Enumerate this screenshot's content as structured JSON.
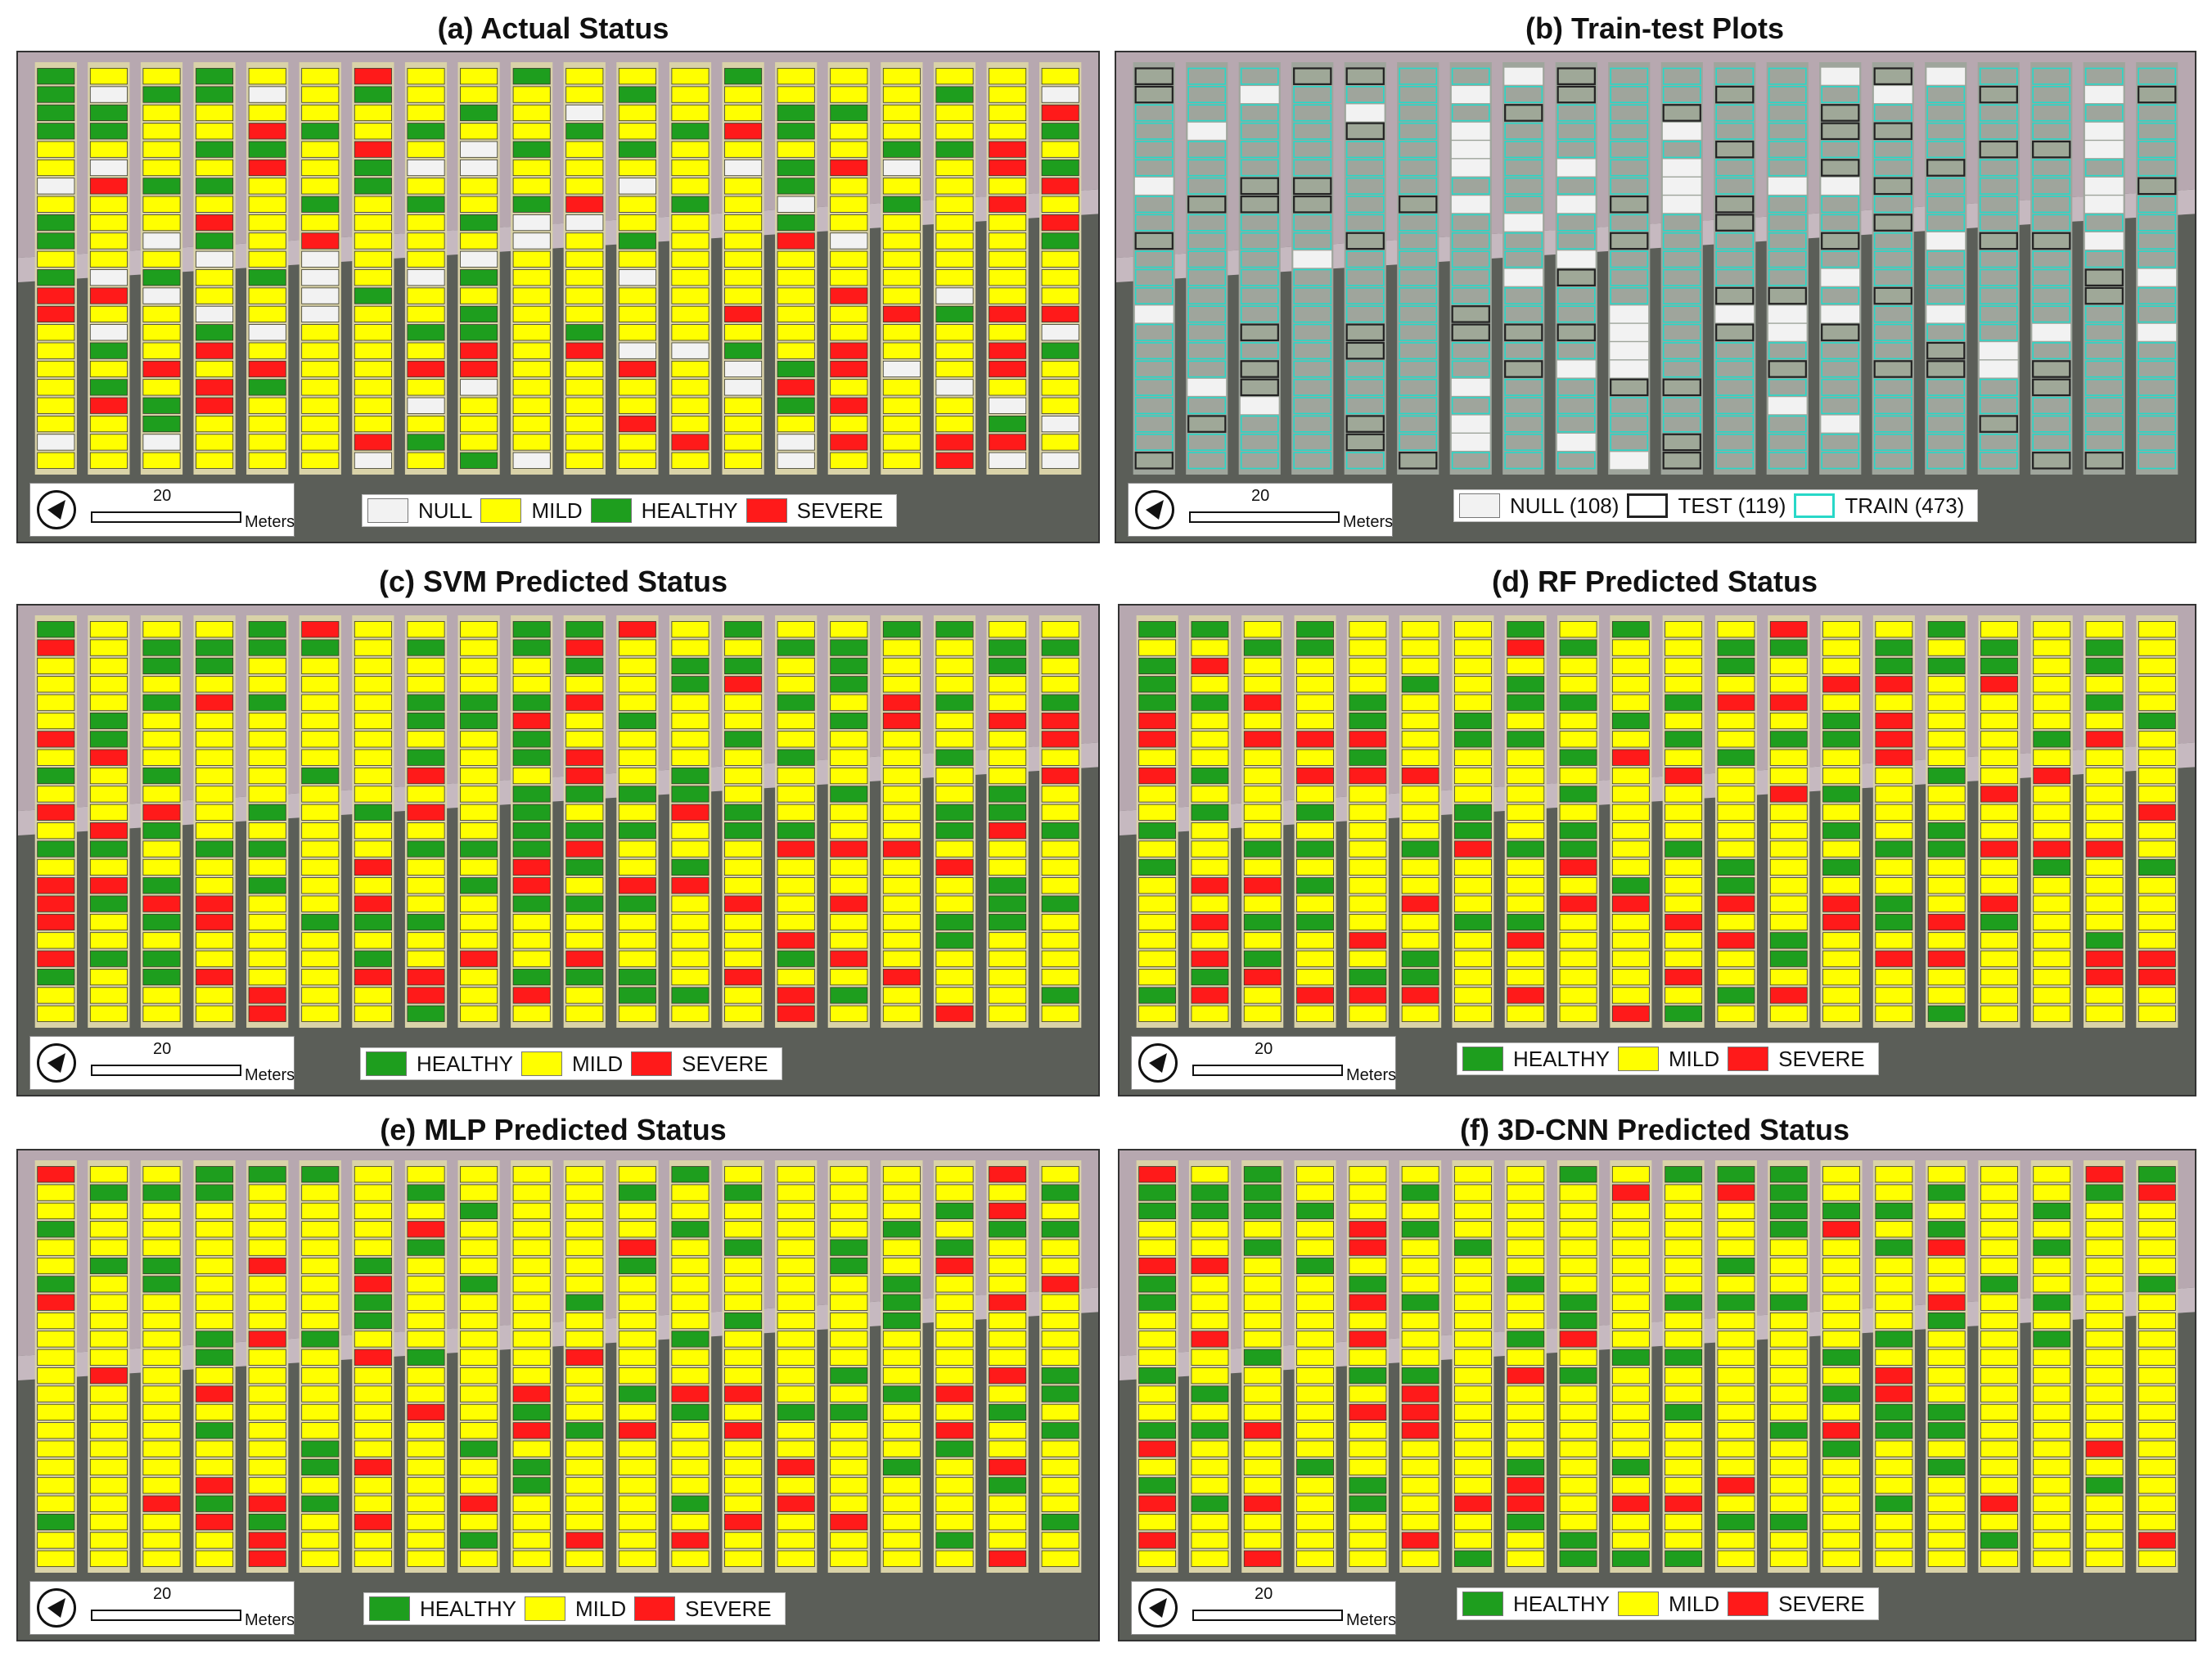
{
  "colors": {
    "null": "#f2f2f2",
    "mild": "#ffff00",
    "healthy": "#1e9e1e",
    "severe": "#ff1a1a",
    "test_outline": "#222222",
    "train_outline": "#28d8c8"
  },
  "scale": {
    "value": "20",
    "unit": "Meters",
    "north_icon": "north-arrow-icon"
  },
  "panels": [
    {
      "id": "a",
      "title": "(a) Actual Status",
      "mode": "actual",
      "legend": [
        {
          "key": "null",
          "label": "NULL"
        },
        {
          "key": "mild",
          "label": "MILD"
        },
        {
          "key": "healthy",
          "label": "HEALTHY"
        },
        {
          "key": "severe",
          "label": "SEVERE"
        }
      ]
    },
    {
      "id": "b",
      "title": "(b) Train-test Plots",
      "mode": "split",
      "legend": [
        {
          "key": "null",
          "label": "NULL (108)"
        },
        {
          "key": "test",
          "label": "TEST (119)"
        },
        {
          "key": "train",
          "label": "TRAIN (473)"
        }
      ]
    },
    {
      "id": "c",
      "title": "(c) SVM Predicted Status",
      "mode": "svm",
      "legend": [
        {
          "key": "healthy",
          "label": "HEALTHY"
        },
        {
          "key": "mild",
          "label": "MILD"
        },
        {
          "key": "severe",
          "label": "SEVERE"
        }
      ]
    },
    {
      "id": "d",
      "title": "(d) RF Predicted Status",
      "mode": "rf",
      "legend": [
        {
          "key": "healthy",
          "label": "HEALTHY"
        },
        {
          "key": "mild",
          "label": "MILD"
        },
        {
          "key": "severe",
          "label": "SEVERE"
        }
      ]
    },
    {
      "id": "e",
      "title": "(e) MLP Predicted Status",
      "mode": "mlp",
      "legend": [
        {
          "key": "healthy",
          "label": "HEALTHY"
        },
        {
          "key": "mild",
          "label": "MILD"
        },
        {
          "key": "severe",
          "label": "SEVERE"
        }
      ]
    },
    {
      "id": "f",
      "title": "(f) 3D-CNN Predicted Status",
      "mode": "cnn",
      "legend": [
        {
          "key": "healthy",
          "label": "HEALTHY"
        },
        {
          "key": "mild",
          "label": "MILD"
        },
        {
          "key": "severe",
          "label": "SEVERE"
        }
      ]
    }
  ]
}
